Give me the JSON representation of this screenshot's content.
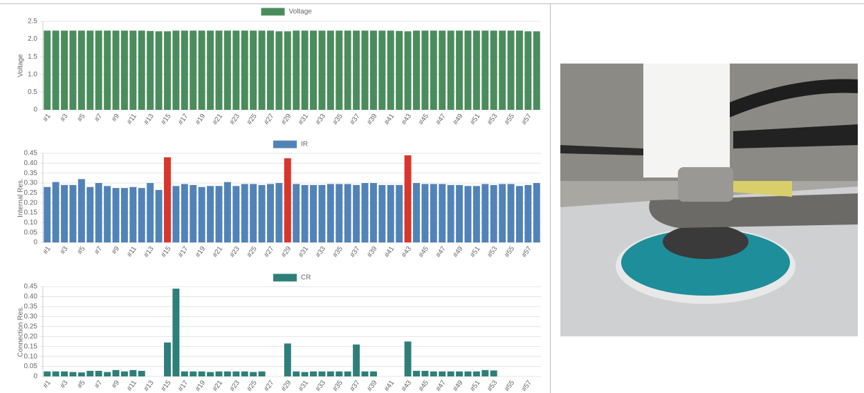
{
  "chart_data": [
    {
      "type": "bar",
      "y_label": "Voltage",
      "categories": [
        "#1",
        null,
        "#3",
        null,
        "#5",
        null,
        "#7",
        null,
        "#9",
        null,
        "#11",
        null,
        "#13",
        null,
        "#15",
        null,
        "#17",
        null,
        "#19",
        null,
        "#21",
        null,
        "#23",
        null,
        "#25",
        null,
        "#27",
        null,
        "#29",
        null,
        "#31",
        null,
        "#33",
        null,
        "#35",
        null,
        "#37",
        null,
        "#39",
        null,
        "#41",
        null,
        "#43",
        null,
        "#45",
        null,
        "#47",
        null,
        "#49",
        null,
        "#51",
        null,
        "#53",
        null,
        "#55",
        null,
        "#57",
        null
      ],
      "series": [
        {
          "name": "Voltage",
          "color": "#4b8c5c",
          "values": [
            2.24,
            2.24,
            2.24,
            2.24,
            2.24,
            2.24,
            2.24,
            2.24,
            2.24,
            2.24,
            2.24,
            2.24,
            2.23,
            2.22,
            2.22,
            2.24,
            2.24,
            2.24,
            2.24,
            2.24,
            2.24,
            2.24,
            2.24,
            2.24,
            2.24,
            2.24,
            2.24,
            2.22,
            2.22,
            2.24,
            2.24,
            2.24,
            2.24,
            2.24,
            2.24,
            2.24,
            2.24,
            2.24,
            2.24,
            2.24,
            2.24,
            2.23,
            2.22,
            2.24,
            2.24,
            2.24,
            2.24,
            2.24,
            2.24,
            2.24,
            2.24,
            2.24,
            2.24,
            2.24,
            2.24,
            2.24,
            2.22,
            2.22
          ]
        }
      ],
      "ylim": [
        0,
        2.5
      ],
      "yticks": [
        0,
        0.5,
        {
          "value": 1,
          "label": "1.0"
        },
        1.5,
        {
          "value": 2,
          "label": "2.0"
        },
        2.5
      ],
      "grid": true
    },
    {
      "type": "bar",
      "y_label": "Internal Res.",
      "categories": [
        "#1",
        null,
        "#3",
        null,
        "#5",
        null,
        "#7",
        null,
        "#9",
        null,
        "#11",
        null,
        "#13",
        null,
        "#15",
        null,
        "#17",
        null,
        "#19",
        null,
        "#21",
        null,
        "#23",
        null,
        "#25",
        null,
        "#27",
        null,
        "#29",
        null,
        "#31",
        null,
        "#33",
        null,
        "#35",
        null,
        "#37",
        null,
        "#39",
        null,
        "#41",
        null,
        "#43",
        null,
        "#45",
        null,
        "#47",
        null,
        "#49",
        null,
        "#51",
        null,
        "#53",
        null,
        "#55",
        null,
        "#57",
        null
      ],
      "series": [
        {
          "name": "IR",
          "color": "#5283b8",
          "values": [
            0.28,
            0.305,
            0.29,
            0.29,
            0.32,
            0.28,
            0.3,
            0.285,
            0.275,
            0.275,
            0.28,
            0.275,
            0.3,
            0.265,
            0.43,
            0.285,
            0.295,
            0.29,
            0.28,
            0.285,
            0.285,
            0.305,
            0.285,
            0.295,
            0.295,
            0.29,
            0.295,
            0.3,
            0.425,
            0.295,
            0.29,
            0.29,
            0.29,
            0.295,
            0.295,
            0.295,
            0.29,
            0.3,
            0.3,
            0.29,
            0.29,
            0.29,
            0.44,
            0.3,
            0.295,
            0.295,
            0.295,
            0.29,
            0.29,
            0.285,
            0.285,
            0.295,
            0.29,
            0.295,
            0.295,
            0.285,
            0.29,
            0.3
          ],
          "colors": [
            "#5283b8",
            "#5283b8",
            "#5283b8",
            "#5283b8",
            "#5283b8",
            "#5283b8",
            "#5283b8",
            "#5283b8",
            "#5283b8",
            "#5283b8",
            "#5283b8",
            "#5283b8",
            "#5283b8",
            "#5283b8",
            "#d9352b",
            "#5283b8",
            "#5283b8",
            "#5283b8",
            "#5283b8",
            "#5283b8",
            "#5283b8",
            "#5283b8",
            "#5283b8",
            "#5283b8",
            "#5283b8",
            "#5283b8",
            "#5283b8",
            "#5283b8",
            "#d9352b",
            "#5283b8",
            "#5283b8",
            "#5283b8",
            "#5283b8",
            "#5283b8",
            "#5283b8",
            "#5283b8",
            "#5283b8",
            "#5283b8",
            "#5283b8",
            "#5283b8",
            "#5283b8",
            "#5283b8",
            "#d9352b",
            "#5283b8",
            "#5283b8",
            "#5283b8",
            "#5283b8",
            "#5283b8",
            "#5283b8",
            "#5283b8",
            "#5283b8",
            "#5283b8",
            "#5283b8",
            "#5283b8",
            "#5283b8",
            "#5283b8",
            "#5283b8",
            "#5283b8"
          ]
        }
      ],
      "ylim": [
        0,
        0.45
      ],
      "yticks": [
        0,
        0.05,
        {
          "value": 0.1,
          "label": "0.10"
        },
        0.15,
        {
          "value": 0.2,
          "label": "0.20"
        },
        0.25,
        {
          "value": 0.3,
          "label": "0.30"
        },
        0.35,
        {
          "value": 0.4,
          "label": "0.40"
        },
        0.45
      ],
      "grid": true
    },
    {
      "type": "bar",
      "y_label": "Connection Res.",
      "categories": [
        "#1",
        null,
        "#3",
        null,
        "#5",
        null,
        "#7",
        null,
        "#9",
        null,
        "#11",
        null,
        "#13",
        null,
        "#15",
        null,
        "#17",
        null,
        "#19",
        null,
        "#21",
        null,
        "#23",
        null,
        "#25",
        null,
        "#27",
        null,
        "#29",
        null,
        "#31",
        null,
        "#33",
        null,
        "#35",
        null,
        "#37",
        null,
        "#39",
        null,
        "#41",
        null,
        "#43",
        null,
        "#45",
        null,
        "#47",
        null,
        "#49",
        null,
        "#51",
        null,
        "#53",
        null,
        "#55",
        null,
        "#57",
        null
      ],
      "series": [
        {
          "name": "CR",
          "color": "#2e7f79",
          "values": [
            0.025,
            0.025,
            0.025,
            0.022,
            0.02,
            0.028,
            0.028,
            0.022,
            0.032,
            0.025,
            0.032,
            0.028,
            0,
            0,
            0.17,
            0.44,
            0.025,
            0.025,
            0.025,
            0.022,
            0.025,
            0.025,
            0.025,
            0.025,
            0.022,
            0.025,
            0,
            0,
            0.165,
            0.025,
            0.022,
            0.025,
            0.025,
            0.025,
            0.025,
            0.025,
            0.16,
            0.025,
            0.025,
            0,
            0,
            0,
            0.175,
            0.028,
            0.028,
            0.025,
            0.025,
            0.025,
            0.025,
            0.025,
            0.025,
            0.032,
            0.03,
            0,
            0,
            0,
            0,
            0
          ]
        }
      ],
      "ylim": [
        0,
        0.45
      ],
      "yticks": [
        0,
        0.05,
        {
          "value": 0.1,
          "label": "0.10"
        },
        0.15,
        {
          "value": 0.2,
          "label": "0.20"
        },
        0.25,
        {
          "value": 0.3,
          "label": "0.30"
        },
        0.35,
        {
          "value": 0.4,
          "label": "0.40"
        },
        0.45
      ],
      "grid": true
    }
  ]
}
